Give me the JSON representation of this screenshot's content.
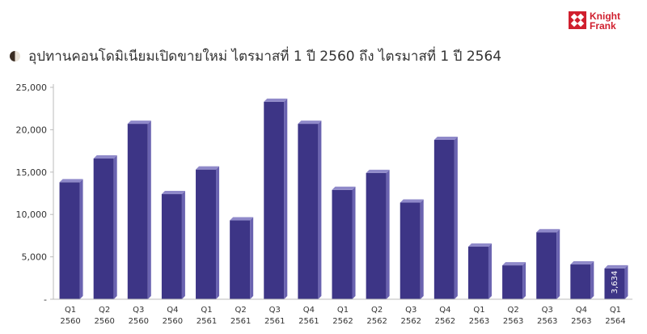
{
  "header": {
    "title": "อุปทานคอนโดมิเนียมเปิดขายใหม่ ไตรมาสที่ 1 ปี 2560 ถึง ไตรมาสที่ 1 ปี 2564",
    "logo_line1": "Knight",
    "logo_line2": "Frank",
    "logo_color": "#d01f2e"
  },
  "chart_data": {
    "type": "bar",
    "categories": [
      [
        "Q1",
        "2560"
      ],
      [
        "Q2",
        "2560"
      ],
      [
        "Q3",
        "2560"
      ],
      [
        "Q4",
        "2560"
      ],
      [
        "Q1",
        "2561"
      ],
      [
        "Q2",
        "2561"
      ],
      [
        "Q3",
        "2561"
      ],
      [
        "Q4",
        "2561"
      ],
      [
        "Q1",
        "2562"
      ],
      [
        "Q2",
        "2562"
      ],
      [
        "Q3",
        "2562"
      ],
      [
        "Q4",
        "2562"
      ],
      [
        "Q1",
        "2563"
      ],
      [
        "Q2",
        "2563"
      ],
      [
        "Q3",
        "2563"
      ],
      [
        "Q4",
        "2563"
      ],
      [
        "Q1",
        "2564"
      ]
    ],
    "values": [
      13800,
      16600,
      20700,
      12400,
      15300,
      9300,
      23300,
      20700,
      12900,
      14900,
      11400,
      18800,
      6200,
      4000,
      7900,
      4100,
      3634
    ],
    "data_labels": [
      {
        "index": 16,
        "text": "3,634"
      }
    ],
    "yticks": [
      {
        "value": 0,
        "label": "-"
      },
      {
        "value": 5000,
        "label": "5,000"
      },
      {
        "value": 10000,
        "label": "10,000"
      },
      {
        "value": 15000,
        "label": "15,000"
      },
      {
        "value": 20000,
        "label": "20,000"
      },
      {
        "value": 25000,
        "label": "25,000"
      }
    ],
    "ylim": [
      0,
      25000
    ],
    "grid": false,
    "legend": "none",
    "colors": {
      "bar_front": "#3d3586",
      "bar_side": "#6a63b0",
      "bar_top": "#8f89c9",
      "axis": "#bbbbbb"
    }
  }
}
